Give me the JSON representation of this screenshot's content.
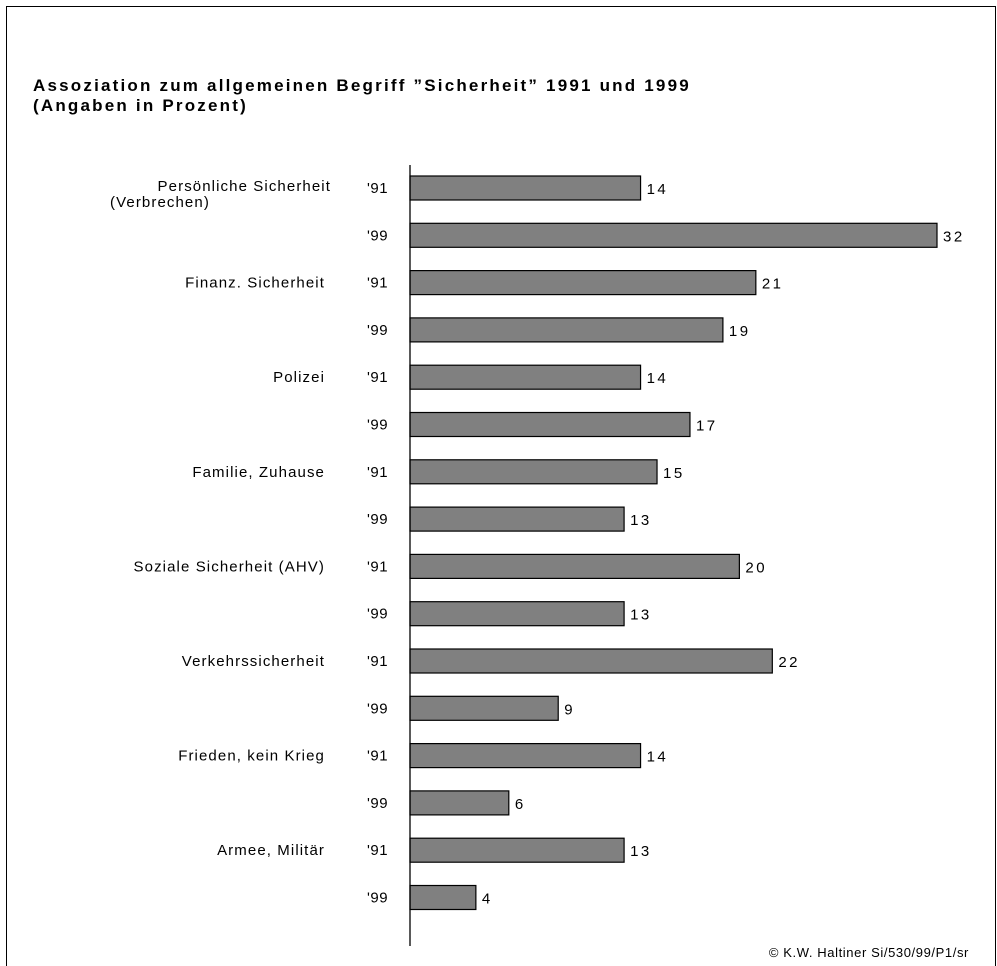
{
  "title_line1": "Assoziation zum allgemeinen Begriff ”Sicherheit” 1991 und 1999",
  "title_line2": "(Angaben in Prozent)",
  "credit": "© K.W. Haltiner Si/530/99/P1/sr",
  "colors": {
    "bar": "#808080",
    "bar_outline": "#000000",
    "text": "#000000"
  },
  "chart_data": {
    "type": "bar",
    "orientation": "horizontal",
    "title": "Assoziation zum allgemeinen Begriff ”Sicherheit” 1991 und 1999 (Angaben in Prozent)",
    "categories": [
      [
        "Persönliche Sicherheit",
        "(Verbrechen)"
      ],
      [
        "Finanz. Sicherheit"
      ],
      [
        "Polizei"
      ],
      [
        "Familie, Zuhause"
      ],
      [
        "Soziale Sicherheit (AHV)"
      ],
      [
        "Verkehrssicherheit"
      ],
      [
        "Frieden, kein Krieg"
      ],
      [
        "Armee, Militär"
      ]
    ],
    "series": [
      {
        "name": "'91",
        "values": [
          14,
          21,
          14,
          15,
          20,
          22,
          14,
          13
        ]
      },
      {
        "name": "'99",
        "values": [
          32,
          19,
          17,
          13,
          13,
          9,
          6,
          4
        ]
      }
    ],
    "xlim": [
      0,
      32
    ],
    "grid": false,
    "legend": "none"
  }
}
